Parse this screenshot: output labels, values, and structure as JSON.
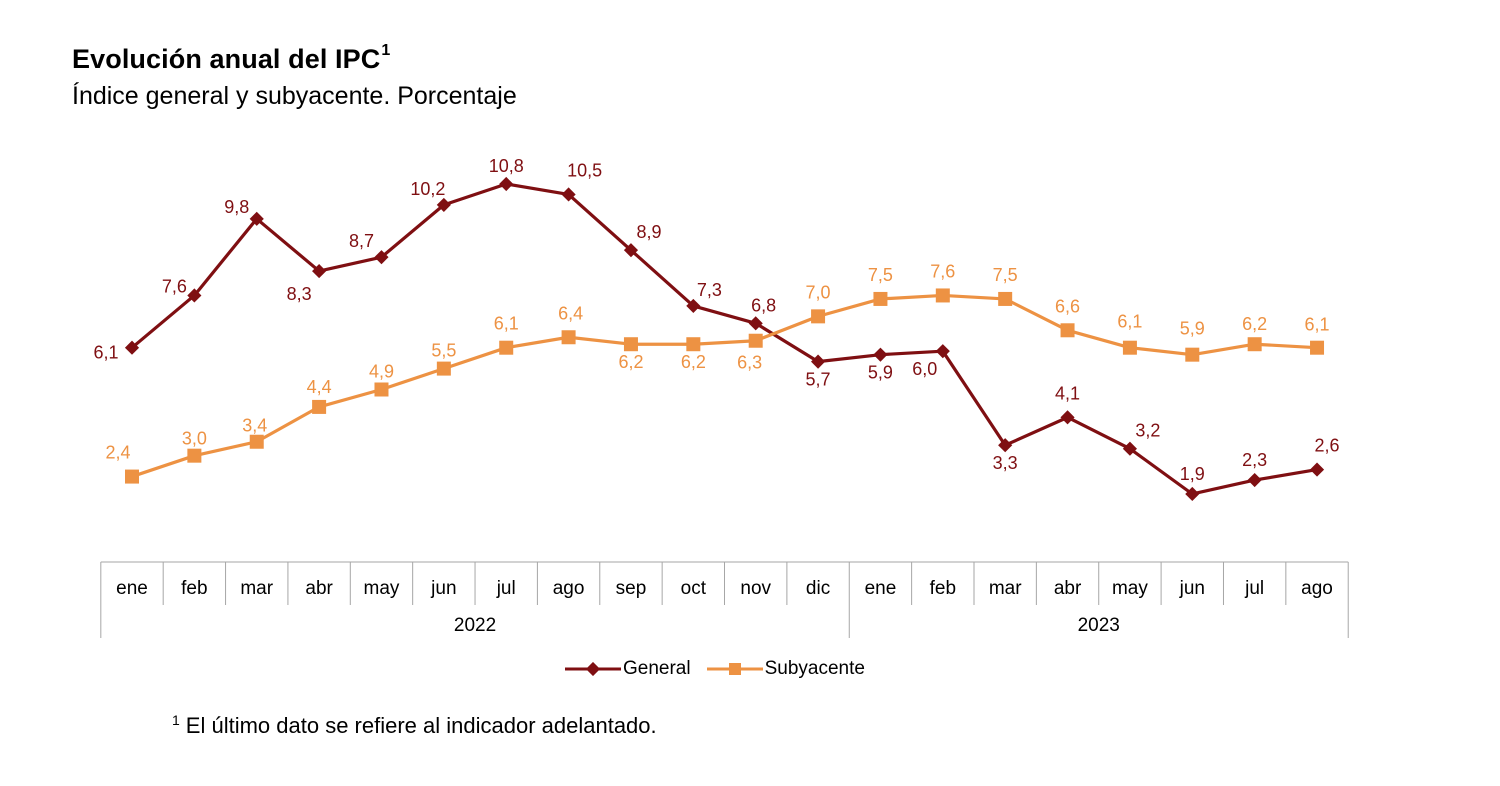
{
  "title": "Evolución anual del IPC",
  "title_sup": "1",
  "subtitle": "Índice general y subyacente. Porcentaje",
  "footnote_sup": "1",
  "footnote": "El último dato se refiere al indicador adelantado.",
  "colors": {
    "general": "#7f0f12",
    "subyacente": "#ed9243",
    "grid": "#a6a6a6"
  },
  "chart_data": {
    "type": "line",
    "title": "Evolución anual del IPC",
    "subtitle": "Índice general y subyacente. Porcentaje",
    "xlabel": "",
    "ylabel": "Porcentaje",
    "x": [
      "ene",
      "feb",
      "mar",
      "abr",
      "may",
      "jun",
      "jul",
      "ago",
      "sep",
      "oct",
      "nov",
      "dic",
      "ene",
      "feb",
      "mar",
      "abr",
      "may",
      "jun",
      "jul",
      "ago"
    ],
    "year_groups": [
      {
        "label": "2022",
        "count": 12
      },
      {
        "label": "2023",
        "count": 8
      }
    ],
    "series": [
      {
        "name": "General",
        "marker": "diamond",
        "values": [
          6.1,
          7.6,
          9.8,
          8.3,
          8.7,
          10.2,
          10.8,
          10.5,
          8.9,
          7.3,
          6.8,
          5.7,
          5.9,
          6.0,
          3.3,
          4.1,
          3.2,
          1.9,
          2.3,
          2.6
        ],
        "labels": [
          "6,1",
          "7,6",
          "9,8",
          "8,3",
          "8,7",
          "10,2",
          "10,8",
          "10,5",
          "8,9",
          "7,3",
          "6,8",
          "5,7",
          "5,9",
          "6,0",
          "3,3",
          "4,1",
          "3,2",
          "1,9",
          "2,3",
          "2,6"
        ]
      },
      {
        "name": "Subyacente",
        "marker": "square",
        "values": [
          2.4,
          3.0,
          3.4,
          4.4,
          4.9,
          5.5,
          6.1,
          6.4,
          6.2,
          6.2,
          6.3,
          7.0,
          7.5,
          7.6,
          7.5,
          6.6,
          6.1,
          5.9,
          6.2,
          6.1
        ],
        "labels": [
          "2,4",
          "3,0",
          "3,4",
          "4,4",
          "4,9",
          "5,5",
          "6,1",
          "6,4",
          "6,2",
          "6,2",
          "6,3",
          "7,0",
          "7,5",
          "7,6",
          "7,5",
          "6,6",
          "6,1",
          "5,9",
          "6,2",
          "6,1"
        ]
      }
    ],
    "legend": [
      "General",
      "Subyacente"
    ],
    "legend_position": "bottom",
    "grid": false,
    "y_axis_visible": false
  }
}
